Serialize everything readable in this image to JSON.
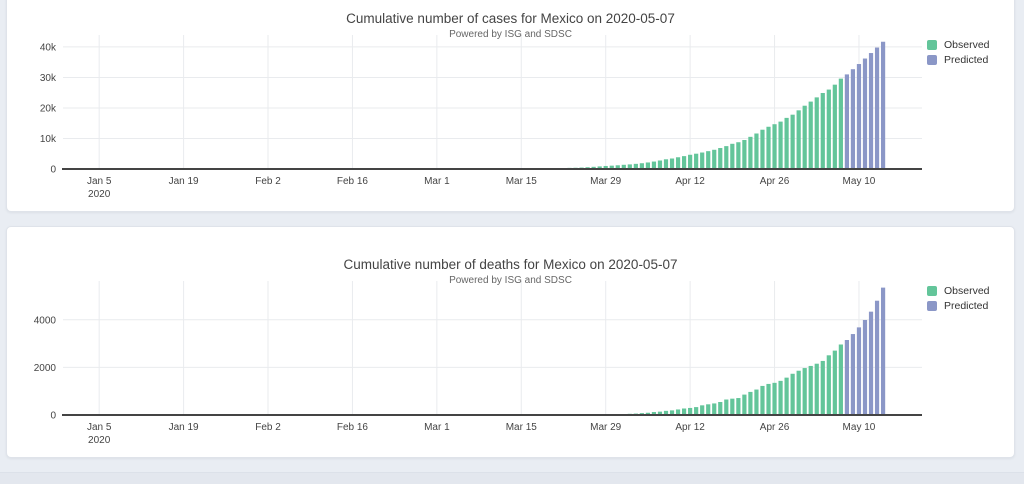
{
  "page": {
    "background": "#e9edf3",
    "card_background": "#ffffff",
    "footer_background": "#e3e7ee"
  },
  "colors": {
    "observed": "#63c59a",
    "predicted": "#8b97c7",
    "gridline": "#e9ebee",
    "axis_line": "#444444",
    "tick_text": "#444444"
  },
  "chart_data": [
    {
      "type": "bar",
      "title": "Cumulative number of cases for Mexico on 2020-05-07",
      "subtitle": "Powered by ISG and SDSC",
      "xlabel": "",
      "ylabel": "",
      "x_start_date": "2020-01-05",
      "x_tick_labels": [
        "Jan 5",
        "Jan 19",
        "Feb 2",
        "Feb 16",
        "Mar 1",
        "Mar 15",
        "Mar 29",
        "Apr 12",
        "Apr 26",
        "May 10"
      ],
      "x_first_tick_second_line": "2020",
      "x_tick_day_offsets": [
        0,
        14,
        28,
        42,
        56,
        70,
        84,
        98,
        112,
        126
      ],
      "y_tick_labels": [
        "0",
        "10k",
        "20k",
        "30k",
        "40k"
      ],
      "y_tick_values": [
        0,
        10000,
        20000,
        30000,
        40000
      ],
      "ylim": [
        0,
        42600
      ],
      "grid": true,
      "legend_position": "top-right",
      "series": [
        {
          "name": "Observed",
          "color": "#63c59a",
          "start_day_offset": 0,
          "values": [
            0,
            0,
            0,
            0,
            0,
            0,
            0,
            0,
            0,
            0,
            0,
            0,
            0,
            0,
            0,
            0,
            0,
            0,
            0,
            0,
            0,
            0,
            0,
            0,
            0,
            0,
            0,
            0,
            0,
            0,
            0,
            0,
            0,
            0,
            0,
            0,
            0,
            0,
            0,
            0,
            0,
            0,
            0,
            0,
            0,
            0,
            0,
            0,
            0,
            0,
            0,
            0,
            0,
            0,
            2,
            4,
            5,
            5,
            5,
            5,
            5,
            6,
            6,
            7,
            7,
            7,
            11,
            15,
            26,
            41,
            53,
            82,
            93,
            118,
            164,
            203,
            251,
            316,
            367,
            405,
            475,
            585,
            717,
            848,
            993,
            1094,
            1215,
            1378,
            1510,
            1688,
            1890,
            2143,
            2439,
            2785,
            3181,
            3441,
            3844,
            4219,
            4661,
            5014,
            5399,
            5847,
            6297,
            6875,
            7497,
            8261,
            8772,
            9501,
            10544,
            11633,
            12872,
            13842,
            14677,
            15529,
            16752,
            17799,
            19224,
            20739,
            22088,
            23471,
            24905,
            26025,
            27634,
            29616
          ]
        },
        {
          "name": "Predicted",
          "color": "#8b97c7",
          "start_day_offset": 124,
          "values": [
            31000,
            32700,
            34400,
            36200,
            38000,
            39800,
            41700
          ]
        }
      ]
    },
    {
      "type": "bar",
      "title": "Cumulative number of deaths for Mexico on 2020-05-07",
      "subtitle": "Powered by ISG and SDSC",
      "xlabel": "",
      "ylabel": "",
      "x_start_date": "2020-01-05",
      "x_tick_labels": [
        "Jan 5",
        "Jan 19",
        "Feb 2",
        "Feb 16",
        "Mar 1",
        "Mar 15",
        "Mar 29",
        "Apr 12",
        "Apr 26",
        "May 10"
      ],
      "x_first_tick_second_line": "2020",
      "x_tick_day_offsets": [
        0,
        14,
        28,
        42,
        56,
        70,
        84,
        98,
        112,
        126
      ],
      "y_tick_labels": [
        "0",
        "2000",
        "4000"
      ],
      "y_tick_values": [
        0,
        2000,
        4000
      ],
      "ylim": [
        0,
        5460
      ],
      "grid": true,
      "legend_position": "top-right",
      "series": [
        {
          "name": "Observed",
          "color": "#63c59a",
          "start_day_offset": 0,
          "values": [
            0,
            0,
            0,
            0,
            0,
            0,
            0,
            0,
            0,
            0,
            0,
            0,
            0,
            0,
            0,
            0,
            0,
            0,
            0,
            0,
            0,
            0,
            0,
            0,
            0,
            0,
            0,
            0,
            0,
            0,
            0,
            0,
            0,
            0,
            0,
            0,
            0,
            0,
            0,
            0,
            0,
            0,
            0,
            0,
            0,
            0,
            0,
            0,
            0,
            0,
            0,
            0,
            0,
            0,
            0,
            0,
            0,
            0,
            0,
            0,
            0,
            0,
            0,
            0,
            0,
            0,
            0,
            0,
            0,
            0,
            0,
            0,
            0,
            0,
            1,
            2,
            2,
            3,
            4,
            5,
            6,
            8,
            12,
            16,
            20,
            28,
            29,
            37,
            50,
            60,
            79,
            94,
            125,
            141,
            174,
            194,
            233,
            273,
            296,
            332,
            406,
            449,
            486,
            546,
            650,
            686,
            712,
            857,
            970,
            1069,
            1221,
            1305,
            1351,
            1434,
            1569,
            1732,
            1859,
            1972,
            2061,
            2154,
            2271,
            2507,
            2704,
            2961
          ]
        },
        {
          "name": "Predicted",
          "color": "#8b97c7",
          "start_day_offset": 124,
          "values": [
            3150,
            3400,
            3680,
            3990,
            4340,
            4800,
            5350
          ]
        }
      ]
    }
  ]
}
